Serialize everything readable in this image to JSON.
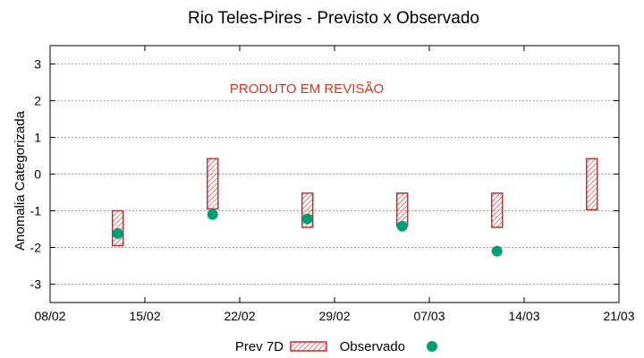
{
  "chart_data": {
    "type": "range-and-scatter",
    "title": "Rio Teles-Pires - Previsto x Observado",
    "xlabel": "",
    "ylabel": "Anomalia Categorizada",
    "annotation": "PRODUTO EM REVISÃO",
    "x_ticks": [
      "08/02",
      "15/02",
      "22/02",
      "29/02",
      "07/03",
      "14/03",
      "21/03"
    ],
    "x_tick_days": [
      0,
      7,
      14,
      21,
      28,
      35,
      42
    ],
    "xlim_days": [
      0,
      42
    ],
    "y_ticks": [
      -3,
      -2,
      -1,
      0,
      1,
      2,
      3
    ],
    "ylim": [
      -3.5,
      3.5
    ],
    "grid": true,
    "legend_position": "bottom-center",
    "series": [
      {
        "name": "Prev 7D",
        "kind": "range-box",
        "color": "#d62728",
        "points": [
          {
            "day": 5,
            "low": -1.95,
            "high": -1.0
          },
          {
            "day": 12,
            "low": -0.95,
            "high": 0.42
          },
          {
            "day": 19,
            "low": -1.45,
            "high": -0.52
          },
          {
            "day": 26,
            "low": -1.42,
            "high": -0.52
          },
          {
            "day": 33,
            "low": -1.45,
            "high": -0.52
          },
          {
            "day": 40,
            "low": -0.97,
            "high": 0.42
          }
        ]
      },
      {
        "name": "Observado",
        "kind": "scatter",
        "color": "#009e73",
        "points": [
          {
            "day": 5,
            "value": -1.62
          },
          {
            "day": 12,
            "value": -1.1
          },
          {
            "day": 19,
            "value": -1.22
          },
          {
            "day": 26,
            "value": -1.42
          },
          {
            "day": 33,
            "value": -2.1
          }
        ]
      }
    ],
    "colors": {
      "prev_box": "#d62728",
      "observado": "#009e73",
      "annotation": "#e03020",
      "grid": "#a0a0a0"
    }
  }
}
